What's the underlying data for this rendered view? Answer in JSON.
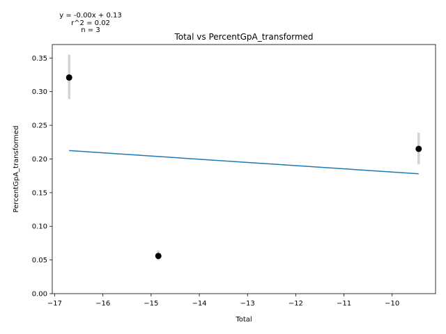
{
  "chart_data": {
    "type": "scatter",
    "title": "Total vs PercentGpA_transformed",
    "xlabel": "Total",
    "ylabel": "PercentGpA_transformed",
    "xlim": [
      -17.05,
      -9.1
    ],
    "ylim": [
      0,
      0.37
    ],
    "xticks": [
      -17,
      -16,
      -15,
      -14,
      -13,
      -12,
      -11,
      -10
    ],
    "xtick_labels": [
      "−17",
      "−16",
      "−15",
      "−14",
      "−13",
      "−12",
      "−11",
      "−10"
    ],
    "yticks": [
      0.0,
      0.05,
      0.1,
      0.15,
      0.2,
      0.25,
      0.3,
      0.35
    ],
    "ytick_labels": [
      "0.00",
      "0.05",
      "0.10",
      "0.15",
      "0.20",
      "0.25",
      "0.30",
      "0.35"
    ],
    "grid": false,
    "points": [
      {
        "x": -16.7,
        "y": 0.321,
        "err_low": 0.289,
        "err_high": 0.355
      },
      {
        "x": -14.85,
        "y": 0.056,
        "err_low": 0.05,
        "err_high": 0.064
      },
      {
        "x": -9.45,
        "y": 0.215,
        "err_low": 0.192,
        "err_high": 0.239
      }
    ],
    "fit_line": {
      "x": [
        -16.7,
        -9.45
      ],
      "y": [
        0.2125,
        0.178
      ]
    },
    "annotation": [
      "y = -0.00x + 0.13",
      "r^2 = 0.02",
      "n = 3"
    ],
    "colors": {
      "points": "#000000",
      "errorbars": "#d3d3d3",
      "fit": "#1f77b4"
    }
  }
}
